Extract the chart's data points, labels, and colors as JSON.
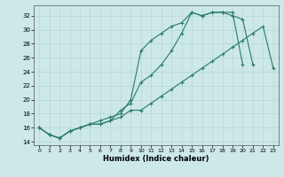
{
  "xlabel": "Humidex (Indice chaleur)",
  "ylabel": "",
  "bg_color": "#cce8e8",
  "grid_color": "#b8d8d8",
  "line_color": "#2a7a6a",
  "xlim": [
    -0.5,
    23.5
  ],
  "ylim": [
    13.5,
    33.5
  ],
  "xticks": [
    0,
    1,
    2,
    3,
    4,
    5,
    6,
    7,
    8,
    9,
    10,
    11,
    12,
    13,
    14,
    15,
    16,
    17,
    18,
    19,
    20,
    21,
    22,
    23
  ],
  "yticks": [
    14,
    16,
    18,
    20,
    22,
    24,
    26,
    28,
    30,
    32
  ],
  "line1_x": [
    0,
    1,
    2,
    3,
    4,
    5,
    6,
    7,
    8,
    9,
    10,
    11,
    12,
    13,
    14,
    15,
    16,
    17,
    18,
    19,
    20,
    21
  ],
  "line1_y": [
    16.0,
    15.0,
    14.5,
    15.5,
    16.0,
    16.5,
    16.5,
    17.0,
    18.5,
    19.5,
    22.5,
    23.5,
    25.0,
    27.0,
    29.5,
    32.5,
    32.0,
    32.5,
    32.5,
    32.0,
    31.5,
    25.0
  ],
  "line2_x": [
    0,
    1,
    2,
    3,
    4,
    5,
    6,
    7,
    8,
    9,
    10,
    11,
    12,
    13,
    14,
    15,
    16,
    17,
    18,
    19,
    20
  ],
  "line2_y": [
    16.0,
    15.0,
    14.5,
    15.5,
    16.0,
    16.5,
    17.0,
    17.5,
    18.0,
    20.0,
    27.0,
    28.5,
    29.5,
    30.5,
    31.0,
    32.5,
    32.0,
    32.5,
    32.5,
    32.5,
    25.0
  ],
  "line3_x": [
    0,
    1,
    2,
    3,
    4,
    5,
    6,
    7,
    8,
    9,
    10,
    11,
    12,
    13,
    14,
    15,
    16,
    17,
    18,
    19,
    20,
    21,
    22,
    23
  ],
  "line3_y": [
    16.0,
    15.0,
    14.5,
    15.5,
    16.0,
    16.5,
    16.5,
    17.0,
    17.5,
    18.5,
    18.5,
    19.5,
    20.5,
    21.5,
    22.5,
    23.5,
    24.5,
    25.5,
    26.5,
    27.5,
    28.5,
    29.5,
    30.5,
    24.5
  ]
}
